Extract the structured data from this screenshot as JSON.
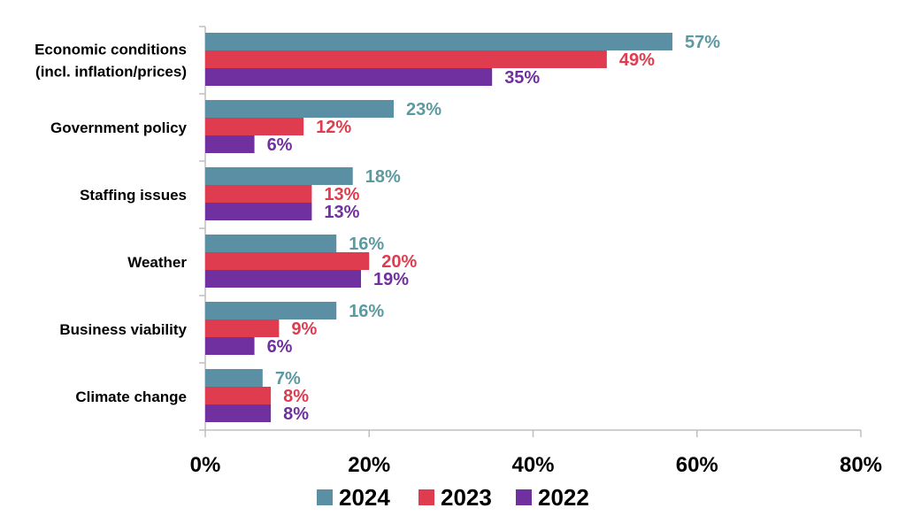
{
  "chart_data": {
    "type": "bar",
    "orientation": "horizontal",
    "title": "",
    "xlabel": "",
    "ylabel": "",
    "xlim": [
      0,
      80
    ],
    "x_ticks": [
      0,
      20,
      40,
      60,
      80
    ],
    "x_tick_labels": [
      "0%",
      "20%",
      "40%",
      "60%",
      "80%"
    ],
    "grid": false,
    "legend_position": "bottom",
    "categories": [
      [
        "Economic conditions",
        "(incl. inflation/prices)"
      ],
      [
        "Government policy"
      ],
      [
        "Staffing issues"
      ],
      [
        "Weather"
      ],
      [
        "Business viability"
      ],
      [
        "Climate change"
      ]
    ],
    "series": [
      {
        "name": "2024",
        "color": "#5B8FA3",
        "label_color": "#5B9AA0",
        "values": [
          57,
          23,
          18,
          16,
          16,
          7
        ],
        "labels": [
          "57%",
          "23%",
          "18%",
          "16%",
          "16%",
          "7%"
        ]
      },
      {
        "name": "2023",
        "color": "#E03C50",
        "label_color": "#E03C50",
        "values": [
          49,
          12,
          13,
          20,
          9,
          8
        ],
        "labels": [
          "49%",
          "12%",
          "13%",
          "20%",
          "9%",
          "8%"
        ]
      },
      {
        "name": "2022",
        "color": "#7030A0",
        "label_color": "#7030A0",
        "values": [
          35,
          6,
          13,
          19,
          6,
          8
        ],
        "labels": [
          "35%",
          "6%",
          "13%",
          "19%",
          "6%",
          "8%"
        ]
      }
    ]
  }
}
